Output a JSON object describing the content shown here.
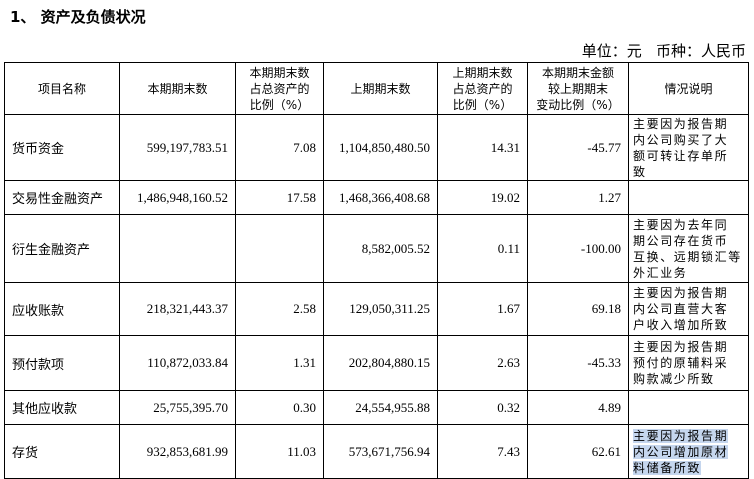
{
  "heading": "1、 资产及负债状况",
  "unit_line": "单位：元   币种：人民币",
  "table": {
    "header": [
      [
        "项目名称"
      ],
      [
        "本期期末数"
      ],
      [
        "本期期末数",
        "占总资产的",
        "比例（%）"
      ],
      [
        "上期期末数"
      ],
      [
        "上期期末数",
        "占总资产的",
        "比例（%）"
      ],
      [
        "本期期末金额",
        "较上期期末",
        "变动比例（%）"
      ],
      [
        "情况说明"
      ]
    ],
    "rows": [
      [
        "货币资金",
        "599,197,783.51",
        "7.08",
        "1,104,850,480.50",
        "14.31",
        "-45.77",
        [
          "主要因为报告期",
          "内公司购买了大",
          "额可转让存单所",
          "致"
        ]
      ],
      [
        "交易性金融资产",
        "1,486,948,160.52",
        "17.58",
        "1,468,366,408.68",
        "19.02",
        "1.27",
        []
      ],
      [
        "衍生金融资产",
        "",
        "",
        "8,582,005.52",
        "0.11",
        "-100.00",
        [
          "主要因为去年同",
          "期公司存在货币",
          "互换、远期锁汇等",
          "外汇业务"
        ]
      ],
      [
        "应收账款",
        "218,321,443.37",
        "2.58",
        "129,050,311.25",
        "1.67",
        "69.18",
        [
          "主要因为报告期",
          "内公司直营大客",
          "户收入增加所致"
        ]
      ],
      [
        "预付款项",
        "110,872,033.84",
        "1.31",
        "202,804,880.15",
        "2.63",
        "-45.33",
        [
          "主要因为报告期",
          "预付的原辅料采",
          "购款减少所致"
        ]
      ],
      [
        "其他应收款",
        "25,755,395.70",
        "0.30",
        "24,554,955.88",
        "0.32",
        "4.89",
        []
      ],
      [
        "存货",
        "932,853,681.99",
        "11.03",
        "573,671,756.94",
        "7.43",
        "62.61",
        [
          "主要因为报告期",
          "内公司增加原材",
          "料储备所致"
        ]
      ]
    ]
  }
}
